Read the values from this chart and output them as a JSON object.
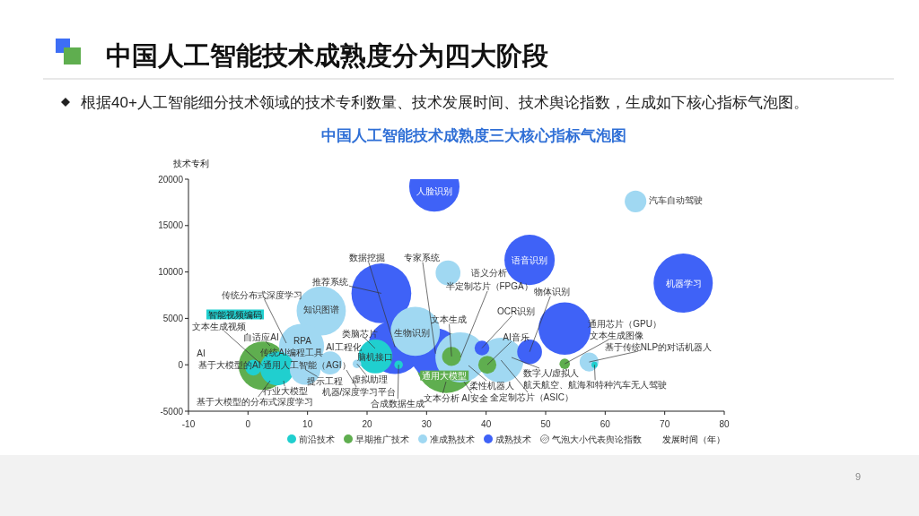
{
  "chart_data": {
    "type": "bubble",
    "title": "中国人工智能技术成熟度分为四大阶段",
    "subtitle": "中国人工智能技术成熟度三大核心指标气泡图",
    "xlabel": "发展时间（年）",
    "ylabel": "技术专利",
    "xlim": [
      -10,
      80
    ],
    "xticks": [
      -10,
      0,
      10,
      20,
      30,
      40,
      50,
      60,
      70,
      80
    ],
    "ylim": [
      -5000,
      20000
    ],
    "yticks": [
      -5000,
      0,
      5000,
      10000,
      15000,
      20000
    ],
    "legend": "bottom",
    "series": [
      {
        "name": "前沿技术",
        "color": "#20cfcf",
        "x": [
          4.9,
          0.9,
          21.4,
          25.3,
          58.2
        ],
        "values": [
          -400,
          -300,
          900,
          0,
          0
        ],
        "sizes": [
          0.32,
          0.07,
          0.32,
          0.02,
          0.01
        ]
      },
      {
        "name": "早期推广技术",
        "color": "#5fae4f",
        "x": [
          2.5,
          33.3,
          34.2,
          40.2,
          53.2
        ],
        "values": [
          -100,
          200,
          900,
          0,
          100
        ],
        "sizes": [
          0.65,
          1,
          0.1,
          0.09,
          0.03
        ]
      },
      {
        "name": "准成熟技术",
        "color": "#a0d8f2",
        "x": [
          65.1,
          33.6,
          12.3,
          9.0,
          28.1,
          13.8,
          35.7,
          42.5,
          57.3,
          18.3,
          9.6
        ],
        "values": [
          17600,
          9900,
          5800,
          2000,
          3600,
          200,
          800,
          500,
          300,
          100,
          -500
        ],
        "sizes": [
          0.13,
          0.17,
          0.67,
          0.56,
          0.67,
          0.15,
          0.7,
          0.56,
          0.1,
          0.02,
          0.26
        ]
      },
      {
        "name": "成熟技术",
        "color": "#3f62f7",
        "x": [
          31.3,
          47.3,
          73.1,
          53.2,
          47.3,
          22.4,
          24.7,
          39.3,
          31.5
        ],
        "values": [
          19200,
          11300,
          8800,
          3900,
          1400,
          7700,
          1900,
          1800,
          1200
        ],
        "sizes": [
          0.7,
          0.7,
          0.97,
          0.76,
          0.17,
          0.99,
          0.8,
          0.06,
          0.71
        ]
      }
    ],
    "annotations": [
      "根据40+人工智能细分技术领域的技术专利数量、技术发展时间、技术舆论指数，生成如下核心指标气泡图。",
      {
        "text": "人脸识别",
        "x": 31.3,
        "y": 19200
      },
      {
        "text": "汽车自动驾驶",
        "x": 65.1,
        "y": 17600
      },
      {
        "text": "语音识别",
        "x": 47.3,
        "y": 11300
      },
      {
        "text": "机器学习",
        "x": 73.1,
        "y": 8800
      },
      {
        "text": "数据挖掘",
        "x": 24.7,
        "y": 1900
      },
      {
        "text": "专家系统",
        "x": 31.5,
        "y": 1200
      },
      {
        "text": "语义分析",
        "x": 33.6,
        "y": 9900
      },
      {
        "text": "推荐系统",
        "x": 22.4,
        "y": 7700
      },
      "传统分布式深度学习",
      {
        "text": "知识图谱",
        "x": 12.3,
        "y": 5800
      },
      "智能视频编码",
      {
        "text": "半定制芯片（FPGA）",
        "x": 35.7,
        "y": 800
      },
      {
        "text": "文本生成视频",
        "x": 2.5,
        "y": -100
      },
      {
        "text": "OCR识别",
        "x": 39.3,
        "y": 1800
      },
      {
        "text": "物体识别",
        "x": 47.3,
        "y": 1400
      },
      {
        "text": "文本生成",
        "x": 34.2,
        "y": 900
      },
      {
        "text": "AI音乐",
        "x": 40.2,
        "y": 0
      },
      {
        "text": "通用芯片（GPU）",
        "x": 53.2,
        "y": 3900
      },
      {
        "text": "文本生成图像",
        "x": 53.2,
        "y": 100
      },
      {
        "text": "基于传统NLP的对话机器人",
        "x": 57.3,
        "y": 300
      },
      "自适应AI",
      {
        "text": "RPA",
        "x": 9.0,
        "y": 2000
      },
      {
        "text": "AI工程化",
        "x": 13.8,
        "y": 200
      },
      "类脑芯片",
      "传统AI编程工具",
      {
        "text": "脑机接口",
        "x": 21.4,
        "y": 900
      },
      {
        "text": "生物识别",
        "x": 28.1,
        "y": 3600
      },
      "AI",
      {
        "text": "基于大模型的AI 通用人工智能（AGI）",
        "x": 4.9,
        "y": -400
      },
      {
        "text": "通用大模型",
        "x": 33.3,
        "y": 200
      },
      "数字人/虚拟人",
      {
        "text": "航天航空、航海和特种汽车无人驾驶",
        "x": 58.2,
        "y": 0
      },
      {
        "text": "提示工程",
        "x": 9.6,
        "y": -500
      },
      {
        "text": "虚拟助理",
        "x": 18.3,
        "y": 100
      },
      "柔性机器人",
      "行业大模型",
      "机器/深度学习平台",
      {
        "text": "全定制芯片（ASIC）",
        "x": 42.5,
        "y": 500
      },
      "AI安全",
      "文本分析",
      {
        "text": "合成数据生成",
        "x": 25.3,
        "y": 0
      },
      "基于大模型的分布式深度学习",
      "气泡大小代表舆论指数",
      "9"
    ]
  }
}
